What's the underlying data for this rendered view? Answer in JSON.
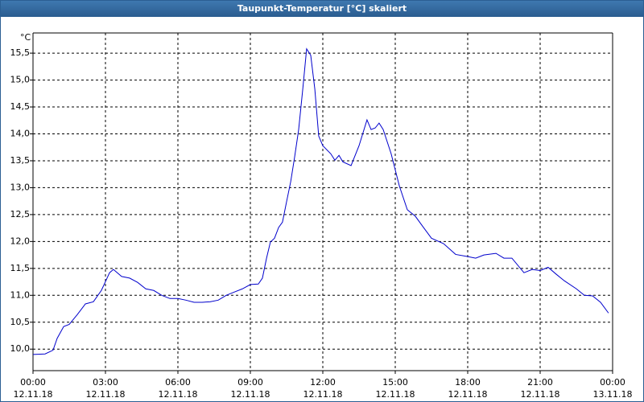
{
  "chart_data": {
    "type": "line",
    "title": "Taupunkt-Temperatur [°C] skaliert",
    "y_label": "°C",
    "xlim": [
      0,
      24
    ],
    "ylim": [
      9.6,
      15.875
    ],
    "grid": true,
    "xticks": [
      {
        "value": 0,
        "label": "00:00\n12.11.18"
      },
      {
        "value": 3,
        "label": "03:00\n12.11.18"
      },
      {
        "value": 6,
        "label": "06:00\n12.11.18"
      },
      {
        "value": 9,
        "label": "09:00\n12.11.18"
      },
      {
        "value": 12,
        "label": "12:00\n12.11.18"
      },
      {
        "value": 15,
        "label": "15:00\n12.11.18"
      },
      {
        "value": 18,
        "label": "18:00\n12.11.18"
      },
      {
        "value": 21,
        "label": "21:00\n12.11.18"
      },
      {
        "value": 24,
        "label": "00:00\n13.11.18"
      }
    ],
    "yticks": [
      {
        "value": 10,
        "label": "10,0"
      },
      {
        "value": 10.5,
        "label": "10,5"
      },
      {
        "value": 11,
        "label": "11,0"
      },
      {
        "value": 11.5,
        "label": "11,5"
      },
      {
        "value": 12,
        "label": "12,0"
      },
      {
        "value": 12.5,
        "label": "12,5"
      },
      {
        "value": 13,
        "label": "13,0"
      },
      {
        "value": 13.5,
        "label": "13,5"
      },
      {
        "value": 14,
        "label": "14,0"
      },
      {
        "value": 14.5,
        "label": "14,5"
      },
      {
        "value": 15,
        "label": "15,0"
      },
      {
        "value": 15.5,
        "label": "15,5"
      }
    ],
    "series": [
      {
        "color": "#0000cc",
        "x": [
          0,
          0.5,
          0.83,
          1,
          1.27,
          1.5,
          1.83,
          2.17,
          2.5,
          2.83,
          3.17,
          3.33,
          3.67,
          4,
          4.33,
          4.67,
          5,
          5.33,
          5.67,
          6,
          6.33,
          6.67,
          7,
          7.33,
          7.67,
          8,
          8.33,
          8.67,
          9,
          9.33,
          9.5,
          9.67,
          9.83,
          10,
          10.17,
          10.33,
          10.5,
          10.67,
          10.83,
          11,
          11.17,
          11.33,
          11.5,
          11.67,
          11.83,
          12,
          12.33,
          12.5,
          12.67,
          12.83,
          13.17,
          13.5,
          13.83,
          14,
          14.17,
          14.33,
          14.5,
          14.83,
          15.17,
          15.5,
          15.83,
          16.17,
          16.5,
          17,
          17.5,
          18,
          18.33,
          18.67,
          19.17,
          19.5,
          19.83,
          20.33,
          20.67,
          21,
          21.33,
          21.67,
          22,
          22.5,
          22.83,
          23.17,
          23.5,
          23.83
        ],
        "values": [
          9.9,
          9.91,
          9.98,
          10.2,
          10.42,
          10.46,
          10.64,
          10.84,
          10.88,
          11.09,
          11.42,
          11.48,
          11.35,
          11.32,
          11.24,
          11.12,
          11.09,
          11.0,
          10.94,
          10.94,
          10.91,
          10.87,
          10.87,
          10.88,
          10.91,
          11.0,
          11.06,
          11.12,
          11.2,
          11.21,
          11.32,
          11.69,
          11.99,
          12.06,
          12.26,
          12.36,
          12.74,
          13.11,
          13.56,
          14.08,
          14.83,
          15.58,
          15.46,
          14.83,
          13.96,
          13.78,
          13.63,
          13.51,
          13.6,
          13.48,
          13.41,
          13.78,
          14.26,
          14.08,
          14.11,
          14.2,
          14.08,
          13.63,
          13.03,
          12.59,
          12.47,
          12.26,
          12.06,
          11.96,
          11.76,
          11.72,
          11.69,
          11.75,
          11.78,
          11.69,
          11.69,
          11.42,
          11.48,
          11.46,
          11.52,
          11.39,
          11.27,
          11.12,
          11.0,
          10.99,
          10.87,
          10.67
        ]
      }
    ]
  }
}
